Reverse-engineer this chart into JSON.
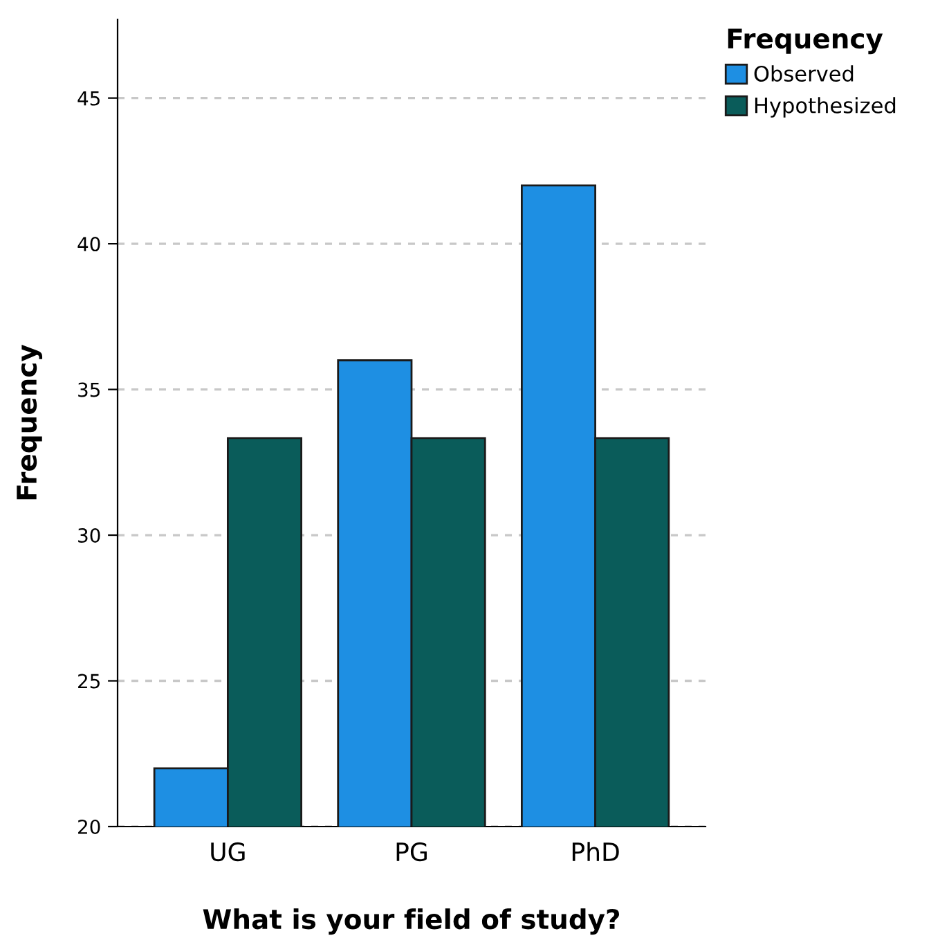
{
  "chart_data": {
    "type": "bar",
    "xlabel": "What is your field of study?",
    "ylabel": "Frequency",
    "legend_title": "Frequency",
    "categories": [
      "UG",
      "PG",
      "PhD"
    ],
    "series": [
      {
        "name": "Observed",
        "color": "#1e8fe3",
        "values": [
          22,
          36,
          42
        ]
      },
      {
        "name": "Hypothesized",
        "color": "#0a5c5a",
        "values": [
          33.33,
          33.33,
          33.33
        ]
      }
    ],
    "ylim": [
      20,
      47.7
    ],
    "yticks": [
      20,
      25,
      30,
      35,
      40,
      45
    ],
    "grid": "y",
    "legend": "top right"
  }
}
